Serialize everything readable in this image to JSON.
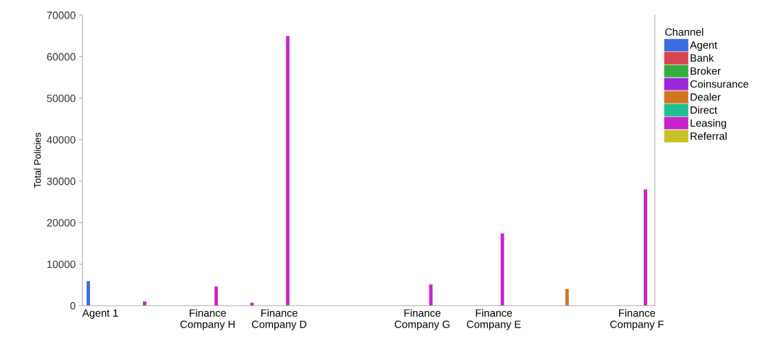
{
  "chart_data": {
    "type": "bar",
    "categories": [
      "Agent 1",
      null,
      null,
      "Finance\nCompany H",
      null,
      "Finance\nCompany D",
      null,
      null,
      null,
      "Finance\nCompany G",
      null,
      "Finance\nCompany E",
      null,
      null,
      null,
      "Finance\nCompany F"
    ],
    "ylabel": "Total Policies",
    "legend_title": "Channel",
    "ylim": [
      0,
      70000
    ],
    "yticks": [
      0,
      10000,
      20000,
      30000,
      40000,
      50000,
      60000,
      70000
    ],
    "grid": false,
    "legend": "right",
    "series": [
      {
        "name": "Agent",
        "color": "#3a6ee0",
        "values": [
          5900,
          null,
          null,
          null,
          null,
          null,
          null,
          null,
          null,
          null,
          null,
          null,
          null,
          null,
          null,
          null
        ]
      },
      {
        "name": "Bank",
        "color": "#d94452",
        "values": [
          null,
          null,
          null,
          null,
          null,
          null,
          null,
          null,
          null,
          null,
          null,
          null,
          null,
          null,
          null,
          null
        ]
      },
      {
        "name": "Broker",
        "color": "#34ad3f",
        "values": [
          null,
          null,
          null,
          null,
          null,
          null,
          null,
          null,
          null,
          null,
          null,
          null,
          null,
          null,
          null,
          null
        ]
      },
      {
        "name": "Coinsurance",
        "color": "#9b27d8",
        "values": [
          null,
          null,
          null,
          null,
          null,
          null,
          null,
          null,
          null,
          null,
          null,
          null,
          null,
          null,
          null,
          null
        ]
      },
      {
        "name": "Dealer",
        "color": "#d27521",
        "values": [
          null,
          null,
          null,
          null,
          null,
          null,
          null,
          null,
          null,
          null,
          null,
          null,
          null,
          4000,
          null,
          null
        ]
      },
      {
        "name": "Direct",
        "color": "#22bd92",
        "values": [
          null,
          null,
          null,
          null,
          null,
          null,
          null,
          null,
          null,
          null,
          null,
          null,
          null,
          null,
          null,
          null
        ]
      },
      {
        "name": "Leasing",
        "color": "#c922c9",
        "values": [
          null,
          1000,
          null,
          4600,
          700,
          65000,
          null,
          null,
          null,
          5100,
          null,
          17400,
          null,
          null,
          null,
          28000
        ]
      },
      {
        "name": "Referral",
        "color": "#c8c126",
        "values": [
          null,
          null,
          null,
          null,
          null,
          null,
          null,
          null,
          null,
          null,
          null,
          null,
          null,
          null,
          null,
          null
        ]
      }
    ]
  }
}
